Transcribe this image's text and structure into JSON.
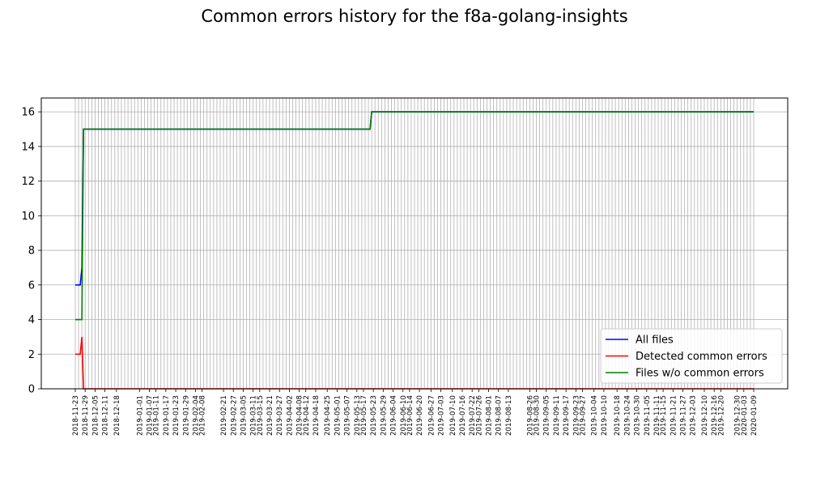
{
  "chart_data": {
    "type": "line",
    "title": "Common errors history for the f8a-golang-insights",
    "xlabel": "",
    "ylabel": "",
    "x_start": "2018-11-23",
    "x_end": "2020-01-09",
    "ylim": [
      0,
      16.8
    ],
    "y_ticks": [
      0,
      2,
      4,
      6,
      8,
      10,
      12,
      14,
      16
    ],
    "grid": true,
    "legend_position": "lower-right",
    "x_tick_labels": [
      "2018-11-23",
      "2018-11-29",
      "2018-12-05",
      "2018-12-11",
      "2018-12-18",
      "2019-01-01",
      "2019-01-07",
      "2019-01-11",
      "2019-01-17",
      "2019-01-23",
      "2019-01-29",
      "2019-02-04",
      "2019-02-08",
      "2019-02-21",
      "2019-02-27",
      "2019-03-05",
      "2019-03-11",
      "2019-03-15",
      "2019-03-21",
      "2019-03-27",
      "2019-04-02",
      "2019-04-08",
      "2019-04-12",
      "2019-04-18",
      "2019-04-25",
      "2019-05-01",
      "2019-05-07",
      "2019-05-13",
      "2019-05-17",
      "2019-05-23",
      "2019-05-29",
      "2019-06-04",
      "2019-06-10",
      "2019-06-14",
      "2019-06-20",
      "2019-06-27",
      "2019-07-03",
      "2019-07-10",
      "2019-07-16",
      "2019-07-22",
      "2019-07-26",
      "2019-08-01",
      "2019-08-07",
      "2019-08-13",
      "2019-08-26",
      "2019-08-30",
      "2019-09-05",
      "2019-09-11",
      "2019-09-17",
      "2019-09-23",
      "2019-09-27",
      "2019-10-04",
      "2019-10-10",
      "2019-10-18",
      "2019-10-24",
      "2019-10-30",
      "2019-11-05",
      "2019-11-11",
      "2019-11-15",
      "2019-11-21",
      "2019-11-27",
      "2019-12-03",
      "2019-12-10",
      "2019-12-16",
      "2019-12-20",
      "2019-12-30",
      "2020-01-03",
      "2020-01-09"
    ],
    "series": [
      {
        "name": "All files",
        "color": "#0000ff",
        "points": [
          [
            "2018-11-23",
            6
          ],
          [
            "2018-11-26",
            6
          ],
          [
            "2018-11-27",
            7
          ],
          [
            "2018-11-28",
            15
          ],
          [
            "2019-05-21",
            15
          ],
          [
            "2019-05-22",
            16
          ],
          [
            "2020-01-09",
            16
          ]
        ]
      },
      {
        "name": "Detected common errors",
        "color": "#ff0000",
        "points": [
          [
            "2018-11-23",
            2
          ],
          [
            "2018-11-26",
            2
          ],
          [
            "2018-11-27",
            3
          ],
          [
            "2018-11-28",
            0
          ],
          [
            "2020-01-09",
            0
          ]
        ]
      },
      {
        "name": "Files w/o common errors",
        "color": "#008000",
        "points": [
          [
            "2018-11-23",
            4
          ],
          [
            "2018-11-27",
            4
          ],
          [
            "2018-11-28",
            15
          ],
          [
            "2019-05-21",
            15
          ],
          [
            "2019-05-22",
            16
          ],
          [
            "2020-01-09",
            16
          ]
        ]
      }
    ]
  }
}
